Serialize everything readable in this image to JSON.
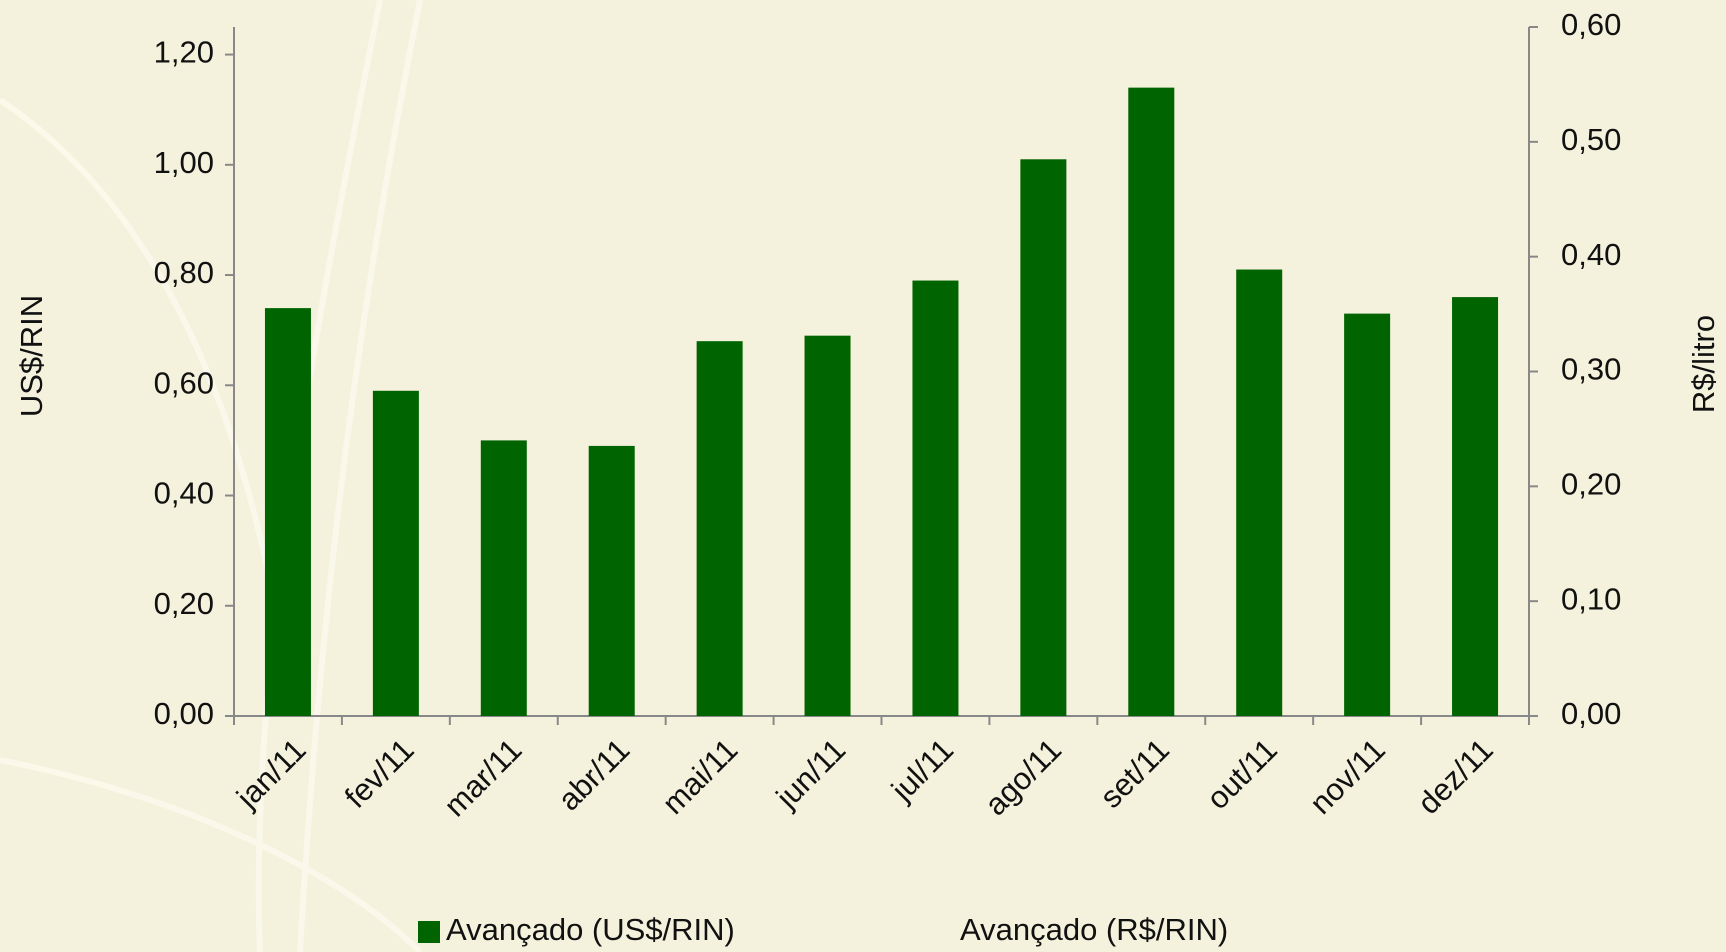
{
  "chart_data": {
    "type": "bar",
    "categories": [
      "jan/11",
      "fev/11",
      "mar/11",
      "abr/11",
      "mai/11",
      "jun/11",
      "jul/11",
      "ago/11",
      "set/11",
      "out/11",
      "nov/11",
      "dez/11"
    ],
    "series": [
      {
        "name": "Avançado (US$/RIN)",
        "color": "#006400",
        "values": [
          0.74,
          0.59,
          0.5,
          0.49,
          0.68,
          0.69,
          0.79,
          1.01,
          1.14,
          0.81,
          0.73,
          0.76
        ]
      },
      {
        "name": "Avançado (R$/RIN)",
        "axis": "y2",
        "values": [
          null,
          null,
          null,
          null,
          null,
          null,
          null,
          null,
          null,
          null,
          null,
          null
        ]
      }
    ],
    "ylabel": "US$/RIN",
    "y2label": "R$/litro",
    "ylim": [
      0,
      1.25
    ],
    "yticks": [
      {
        "value": 0,
        "label": "0,00"
      },
      {
        "value": 0.2,
        "label": "0,20"
      },
      {
        "value": 0.4,
        "label": "0,40"
      },
      {
        "value": 0.6,
        "label": "0,60"
      },
      {
        "value": 0.8,
        "label": "0,80"
      },
      {
        "value": 1.0,
        "label": "1,00"
      },
      {
        "value": 1.2,
        "label": "1,20"
      }
    ],
    "y2lim": [
      0,
      0.6
    ],
    "y2ticks": [
      {
        "value": 0,
        "label": "0,00"
      },
      {
        "value": 0.1,
        "label": "0,10"
      },
      {
        "value": 0.2,
        "label": "0,20"
      },
      {
        "value": 0.3,
        "label": "0,30"
      },
      {
        "value": 0.4,
        "label": "0,40"
      },
      {
        "value": 0.5,
        "label": "0,50"
      },
      {
        "value": 0.6,
        "label": "0,60"
      }
    ],
    "legend": "bottom"
  }
}
